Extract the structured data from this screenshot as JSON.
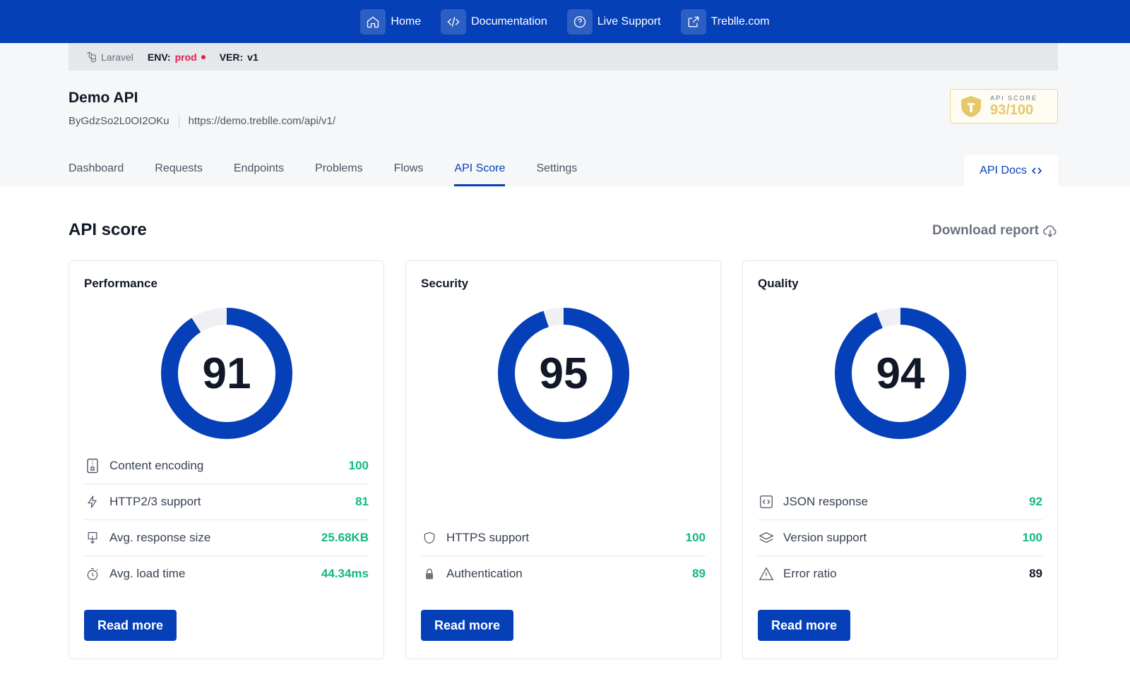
{
  "topnav": {
    "links": [
      {
        "label": "Home",
        "icon": "home-icon"
      },
      {
        "label": "Documentation",
        "icon": "code-icon"
      },
      {
        "label": "Live Support",
        "icon": "help-circle-icon"
      },
      {
        "label": "Treblle.com",
        "icon": "external-link-icon"
      }
    ]
  },
  "envbar": {
    "framework": "Laravel",
    "env_key": "ENV:",
    "env_value": "prod",
    "ver_key": "VER:",
    "ver_value": "v1"
  },
  "project": {
    "title": "Demo API",
    "id": "ByGdzSo2L0OI2OKu",
    "base_url": "https://demo.treblle.com/api/v1/"
  },
  "score_badge": {
    "label": "API SCORE",
    "value": "93/100"
  },
  "tabs": [
    {
      "label": "Dashboard"
    },
    {
      "label": "Requests"
    },
    {
      "label": "Endpoints"
    },
    {
      "label": "Problems"
    },
    {
      "label": "Flows"
    },
    {
      "label": "API Score",
      "active": true
    },
    {
      "label": "Settings"
    }
  ],
  "api_docs": {
    "label": "API Docs",
    "icon": "code-brackets-icon"
  },
  "section": {
    "title": "API score",
    "download_label": "Download report",
    "download_icon": "cloud-download-icon"
  },
  "colors": {
    "primary": "#0540b8",
    "good": "#10b981",
    "neutral": "#111827",
    "track": "#eef0f4"
  },
  "cards": [
    {
      "title": "Performance",
      "score": 91,
      "metrics": [
        {
          "label": "Content encoding",
          "value": "100",
          "status": "good",
          "icon": "zip-file-icon"
        },
        {
          "label": "HTTP2/3 support",
          "value": "81",
          "status": "good",
          "icon": "lightning-icon"
        },
        {
          "label": "Avg. response size",
          "value": "25.68KB",
          "status": "good",
          "icon": "download-size-icon"
        },
        {
          "label": "Avg. load time",
          "value": "44.34ms",
          "status": "good",
          "icon": "stopwatch-icon"
        }
      ],
      "button": "Read more"
    },
    {
      "title": "Security",
      "score": 95,
      "metrics": [
        {
          "label": "HTTPS support",
          "value": "100",
          "status": "good",
          "icon": "shield-icon"
        },
        {
          "label": "Authentication",
          "value": "89",
          "status": "good",
          "icon": "lock-icon"
        }
      ],
      "button": "Read more"
    },
    {
      "title": "Quality",
      "score": 94,
      "metrics": [
        {
          "label": "JSON response",
          "value": "92",
          "status": "good",
          "icon": "json-icon"
        },
        {
          "label": "Version support",
          "value": "100",
          "status": "good",
          "icon": "layers-icon"
        },
        {
          "label": "Error ratio",
          "value": "89",
          "status": "neutral",
          "icon": "warning-icon"
        }
      ],
      "button": "Read more"
    }
  ]
}
